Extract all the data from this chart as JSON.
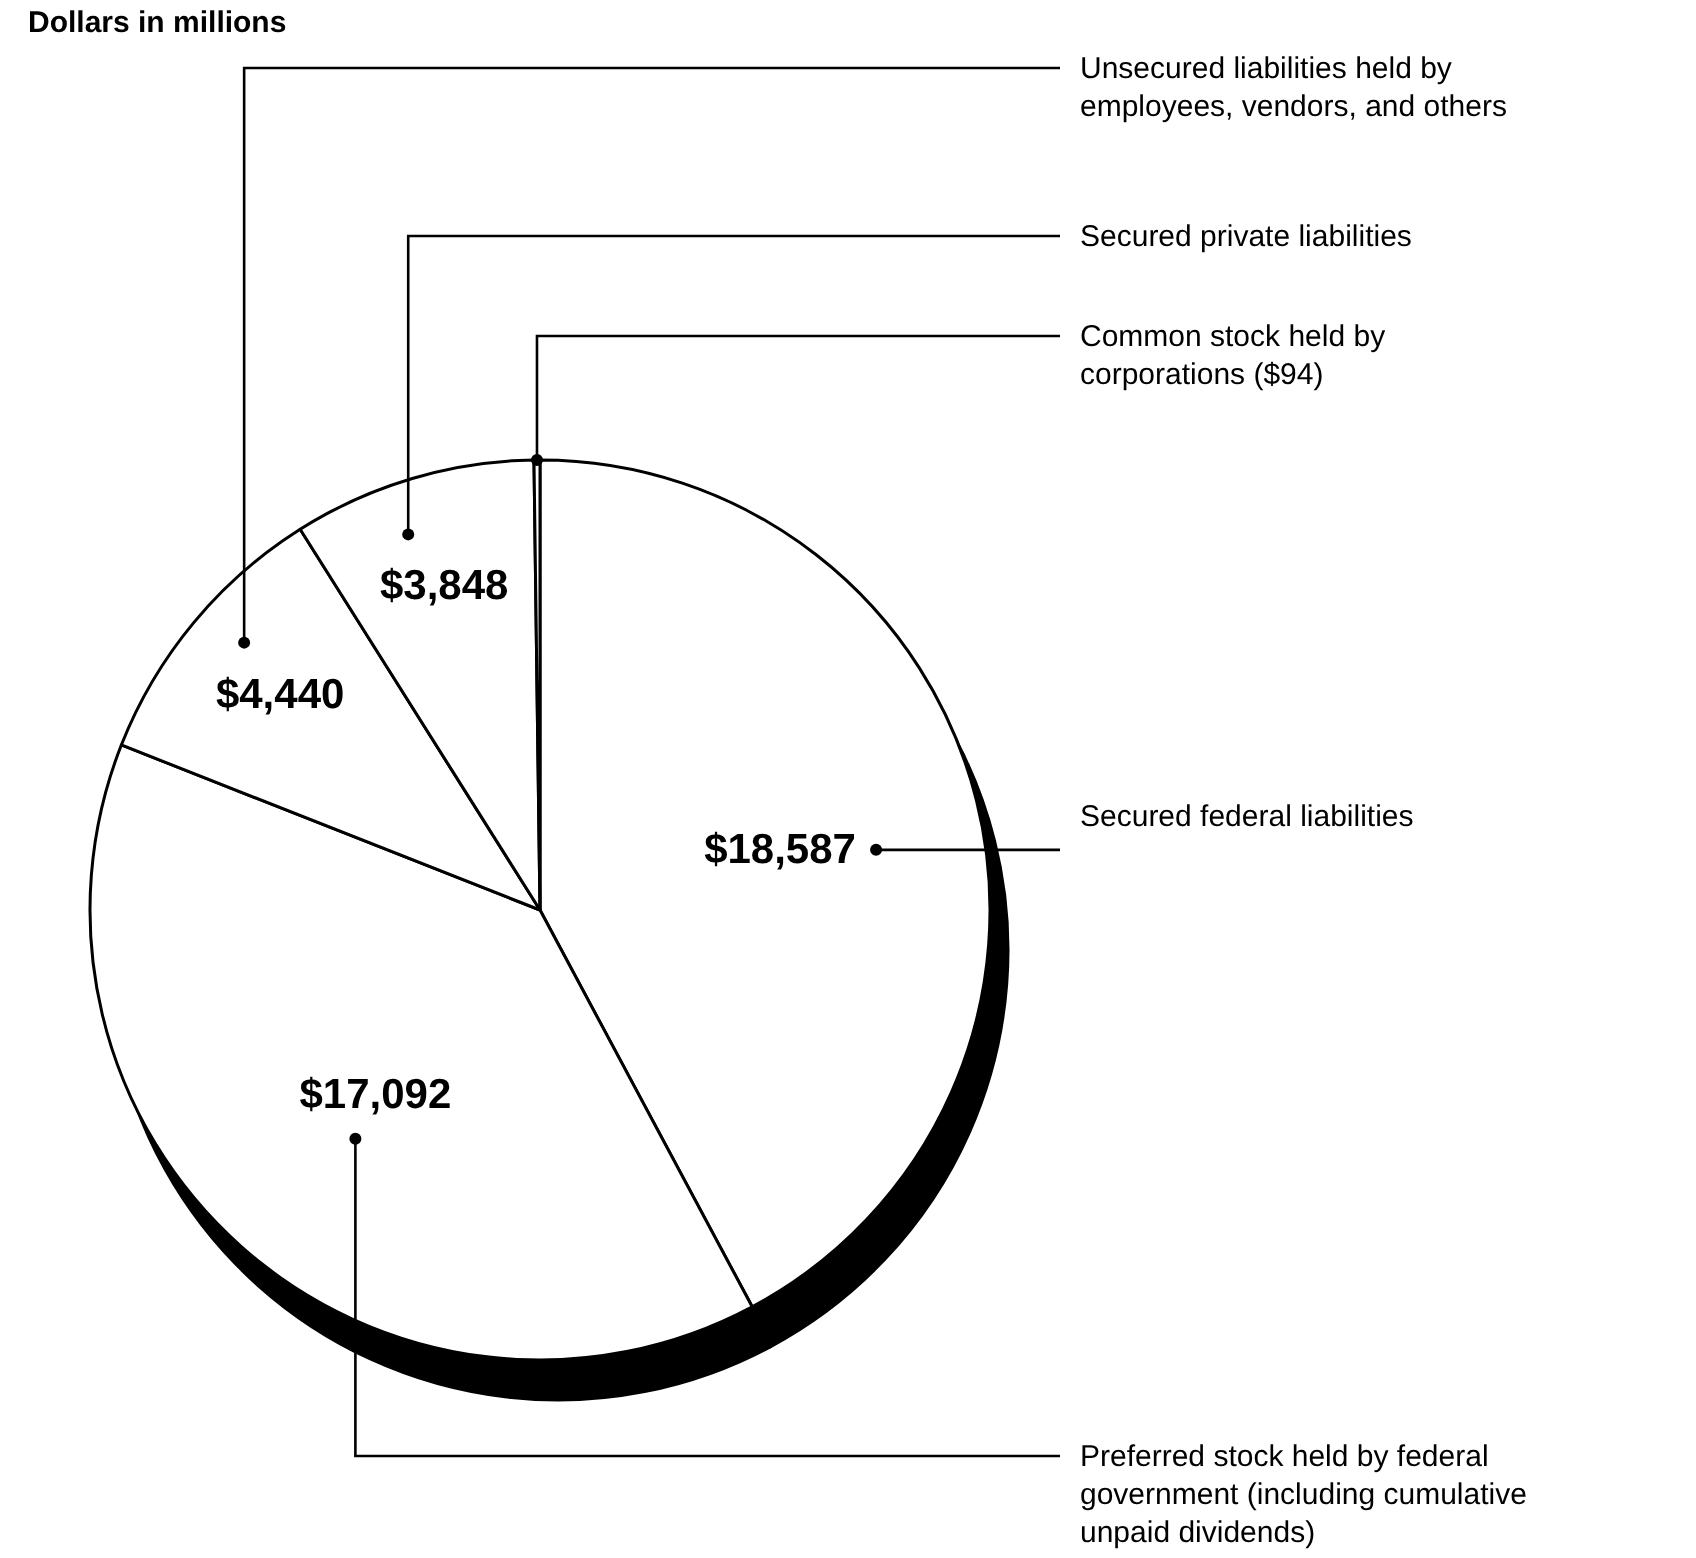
{
  "chart_data": {
    "type": "pie",
    "title": "Dollars in millions",
    "categories": [
      "Secured federal liabilities",
      "Preferred stock held by federal government (including cumulative unpaid dividends)",
      "Unsecured liabilities held by employees, vendors, and others",
      "Secured private liabilities",
      "Common stock held by corporations ($94)"
    ],
    "values": [
      18587,
      17092,
      4440,
      3848,
      94
    ],
    "colors": [
      "#ffffff",
      "#ffffff",
      "#ffffff",
      "#ffffff",
      "#ffffff"
    ],
    "value_labels": [
      "$18,587",
      "$17,092",
      "$4,440",
      "$3,848",
      null
    ]
  }
}
